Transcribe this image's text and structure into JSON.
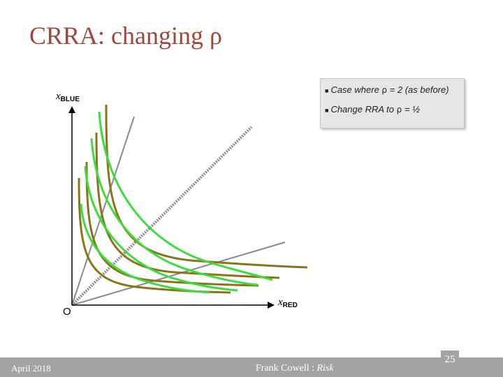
{
  "title": "CRRA: changing ρ",
  "legend": {
    "item1_prefix": "Case where ",
    "item1_symbol": "ρ",
    "item1_suffix": " = 2 (as before)",
    "item2_prefix": "Change RRA to ",
    "item2_symbol": "ρ",
    "item2_suffix": " = ½"
  },
  "axes": {
    "y_label": "x",
    "y_sub": "BLUE",
    "x_label": "x",
    "x_sub": "RED",
    "origin": "O"
  },
  "colors": {
    "title": "#a0463c",
    "green_curve": "#3ddc3d",
    "olive_curve": "#8a7418",
    "ray": "#8a8a8a",
    "axis": "#000000",
    "footer": "#a3a3a3"
  },
  "footer": {
    "date": "April 2018",
    "author": "Frank Cowell : ",
    "course": "Risk",
    "page": "25"
  }
}
